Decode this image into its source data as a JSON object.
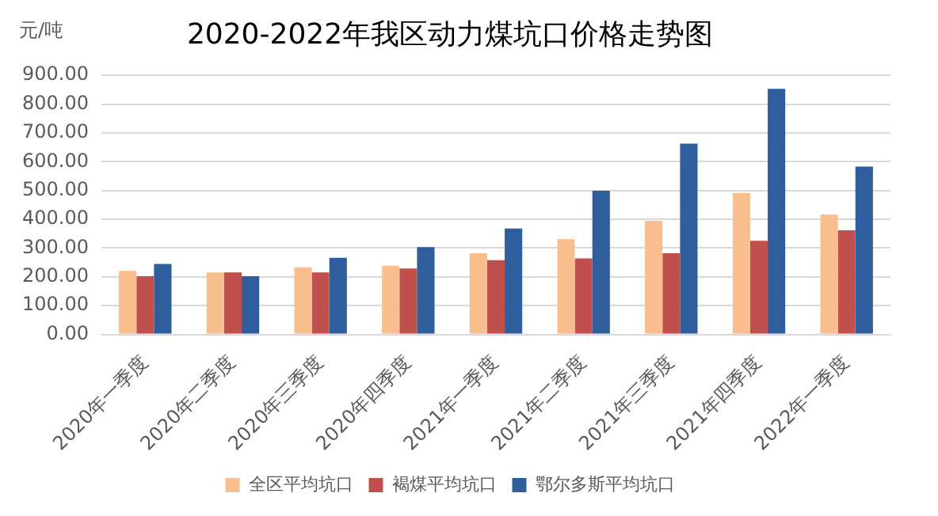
{
  "chart_data": {
    "type": "bar",
    "title": "2020-2022年我区动力煤坑口价格走势图",
    "ylabel": "元/吨",
    "categories": [
      "2020年一季度",
      "2020年二季度",
      "2020年三季度",
      "2020年四季度",
      "2021年一季度",
      "2021年二季度",
      "2021年三季度",
      "2021年四季度",
      "2022年一季度"
    ],
    "series": [
      {
        "name": "全区平均坑口",
        "color": "#f9be8e",
        "values": [
          221,
          215,
          233,
          239,
          282,
          331,
          395,
          491,
          417
        ]
      },
      {
        "name": "褐煤平均坑口",
        "color": "#c0504d",
        "values": [
          202,
          215,
          215,
          229,
          258,
          264,
          282,
          325,
          362
        ]
      },
      {
        "name": "鄂尔多斯平均坑口",
        "color": "#2e5e9e",
        "values": [
          245,
          202,
          266,
          303,
          368,
          499,
          663,
          853,
          583
        ]
      }
    ],
    "ylim": [
      0,
      900
    ],
    "yticks": [
      {
        "value": 0,
        "label": "0.00"
      },
      {
        "value": 100,
        "label": "100.00"
      },
      {
        "value": 200,
        "label": "200.00"
      },
      {
        "value": 300,
        "label": "300.00"
      },
      {
        "value": 400,
        "label": "400.00"
      },
      {
        "value": 500,
        "label": "500.00"
      },
      {
        "value": 600,
        "label": "600.00"
      },
      {
        "value": 700,
        "label": "700.00"
      },
      {
        "value": 800,
        "label": "800.00"
      },
      {
        "value": 900,
        "label": "900.00"
      }
    ],
    "grid": "y",
    "legend": "bottom"
  }
}
